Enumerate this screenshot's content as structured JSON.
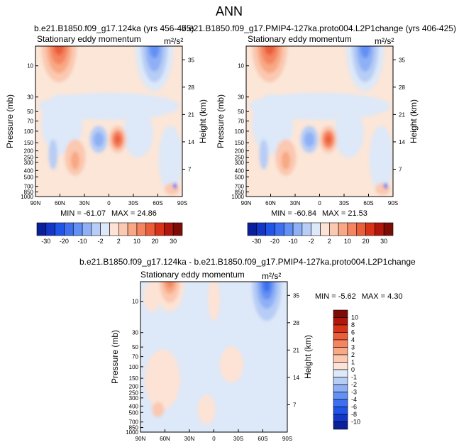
{
  "figure_title": "ANN",
  "units": "m²/s²",
  "variable": "Stationary eddy momentum",
  "panels": [
    {
      "id": "case",
      "title": "b.e21.B1850.f09_g17.124ka (yrs 456-475)",
      "subtitle": "Stationary eddy momentum",
      "min_label": "MIN = -61.07",
      "max_label": "MAX = 24.86"
    },
    {
      "id": "control",
      "title": "b.e21.B1850.f09_g17.PMIP4-127ka.proto004.L2P1change (yrs 406-425)",
      "subtitle": "Stationary eddy momentum",
      "min_label": "MIN = -60.84",
      "max_label": "MAX = 21.53"
    },
    {
      "id": "difference",
      "title": "b.e21.B1850.f09_g17.124ka - b.e21.B1850.f09_g17.PMIP4-127ka.proto004.L2P1change",
      "subtitle": "Stationary eddy momentum",
      "min_label": "MIN = -5.62",
      "max_label": "MAX = 4.30"
    }
  ],
  "axes": {
    "ylabel": "Pressure (mb)",
    "ylabel_right": "Height (km)",
    "x_tick_labels": [
      "90N",
      "60N",
      "30N",
      "0",
      "30S",
      "60S",
      "90S"
    ],
    "pressure_ticks": [
      "10",
      "30",
      "50",
      "70",
      "100",
      "150",
      "200",
      "250",
      "300",
      "400",
      "500",
      "700",
      "850",
      "1000"
    ],
    "height_ticks": [
      "35",
      "28",
      "21",
      "14",
      "7"
    ]
  },
  "colorbars": {
    "main": {
      "labels": [
        "-30",
        "-20",
        "-10",
        "-2",
        "2",
        "10",
        "20",
        "30"
      ],
      "colors": [
        "#0a1f9a",
        "#1436c8",
        "#1f54e8",
        "#3d6ff0",
        "#6390f4",
        "#8fb0f5",
        "#b7cdf6",
        "#dde8f8",
        "#fde3d5",
        "#fbc8b0",
        "#f8a884",
        "#f48560",
        "#ec5d3a",
        "#d83318",
        "#b0160b",
        "#7e0c05"
      ]
    },
    "diff": {
      "labels": [
        "10",
        "8",
        "6",
        "4",
        "3",
        "2",
        "1",
        "0",
        "-1",
        "-2",
        "-3",
        "-4",
        "-6",
        "-8",
        "-10"
      ],
      "colors": [
        "#7e0c05",
        "#b0160b",
        "#d83318",
        "#ec5d3a",
        "#f48560",
        "#f8a884",
        "#fbc8b0",
        "#fde3d5",
        "#dde8f8",
        "#b7cdf6",
        "#8fb0f5",
        "#6390f4",
        "#3d6ff0",
        "#1f54e8",
        "#1436c8",
        "#0a1f9a"
      ]
    }
  },
  "chart_data": [
    {
      "type": "heatmap",
      "title": "b.e21.B1850.f09_g17.124ka (yrs 456-475)",
      "variable": "Stationary eddy momentum",
      "units": "m2/s2",
      "x_range": [
        "90N",
        "90S"
      ],
      "y_range_mb": [
        1000,
        5
      ],
      "min": -61.07,
      "max": 24.86,
      "features": [
        {
          "lat": 60,
          "p": 7,
          "value": 24,
          "name": "NH stratospheric positive maximum"
        },
        {
          "lat": -60,
          "p": 8,
          "value": -40,
          "name": "SH stratospheric negative jet"
        },
        {
          "lat": 20,
          "p": 150,
          "value": -20,
          "name": "NH subtropical negative cell"
        },
        {
          "lat": -5,
          "p": 150,
          "value": 20,
          "name": "equatorial upper-tropospheric positive cell"
        },
        {
          "lat": 45,
          "p": 250,
          "value": 8,
          "name": "NH mid-latitude positive"
        },
        {
          "lat": -82,
          "p": 900,
          "value": -61,
          "name": "Antarctic surface minimum"
        }
      ]
    },
    {
      "type": "heatmap",
      "title": "b.e21.B1850.f09_g17.PMIP4-127ka.proto004.L2P1change (yrs 406-425)",
      "variable": "Stationary eddy momentum",
      "units": "m2/s2",
      "x_range": [
        "90N",
        "90S"
      ],
      "y_range_mb": [
        1000,
        5
      ],
      "min": -60.84,
      "max": 21.53,
      "features": [
        {
          "lat": 60,
          "p": 7,
          "value": 21,
          "name": "NH stratospheric positive maximum"
        },
        {
          "lat": -60,
          "p": 8,
          "value": -40,
          "name": "SH stratospheric negative jet"
        },
        {
          "lat": 20,
          "p": 150,
          "value": -20,
          "name": "NH subtropical negative cell"
        },
        {
          "lat": -5,
          "p": 150,
          "value": 20,
          "name": "equatorial upper-tropospheric positive cell"
        },
        {
          "lat": -82,
          "p": 900,
          "value": -60,
          "name": "Antarctic surface minimum"
        }
      ]
    },
    {
      "type": "heatmap",
      "title": "b.e21.B1850.f09_g17.124ka - b.e21.B1850.f09_g17.PMIP4-127ka.proto004.L2P1change",
      "variable": "Stationary eddy momentum",
      "units": "m2/s2",
      "x_range": [
        "90N",
        "90S"
      ],
      "y_range_mb": [
        1000,
        5
      ],
      "min": -5.62,
      "max": 4.3,
      "features": [
        {
          "lat": 55,
          "p": 6,
          "value": 4,
          "name": "NH stratospheric positive difference"
        },
        {
          "lat": -65,
          "p": 8,
          "value": -5,
          "name": "SH stratospheric negative difference"
        },
        {
          "lat": 0,
          "p": 300,
          "value": -0.5,
          "name": "weak tropical differences"
        }
      ]
    }
  ]
}
